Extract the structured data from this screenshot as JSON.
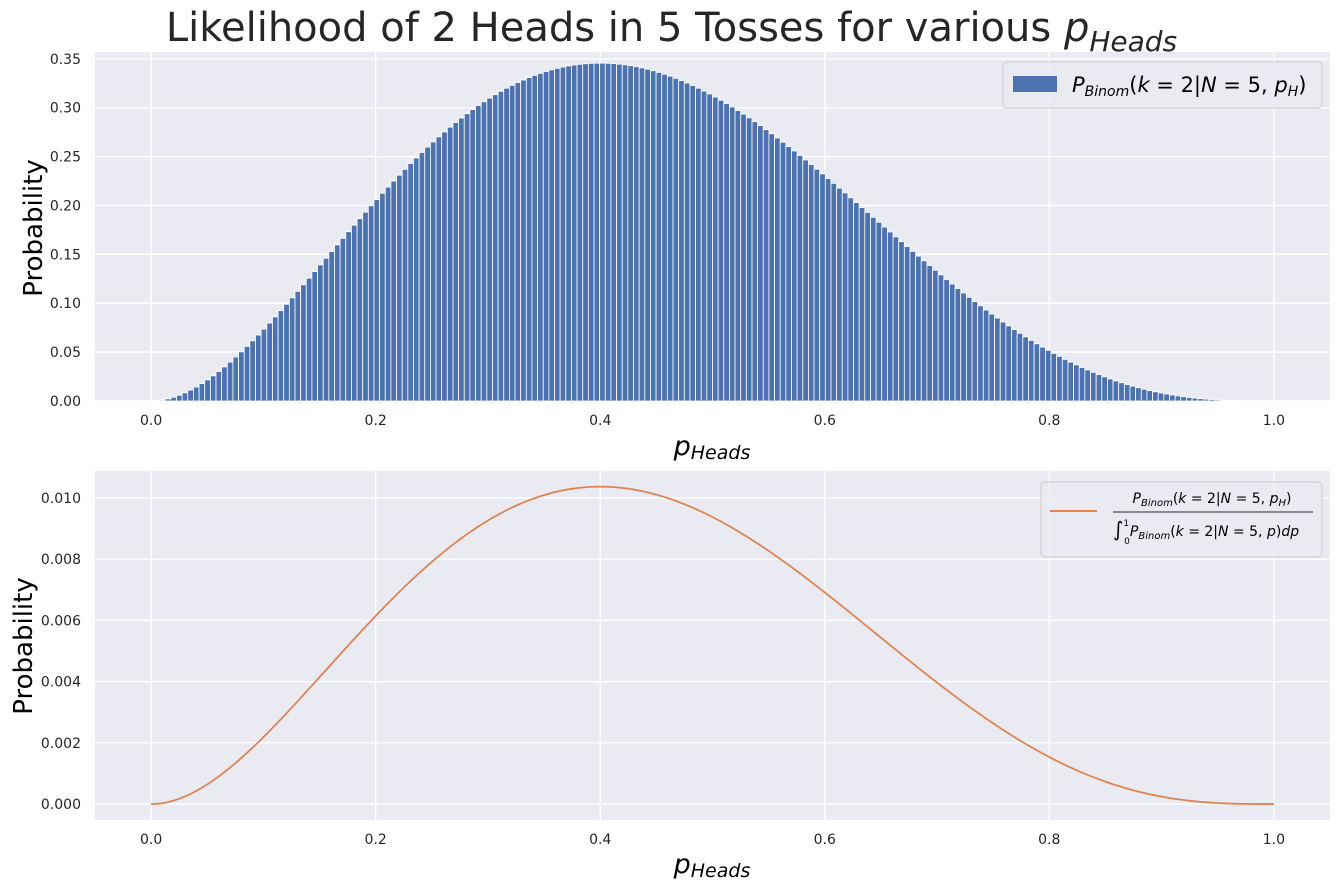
{
  "chart_data": [
    {
      "type": "bar",
      "title_text": "Likelihood of 2 Heads in 5 Tosses for various ",
      "title_math_base": "p",
      "title_math_sub": "Heads",
      "xlabel_base": "p",
      "xlabel_sub": "Heads",
      "ylabel": "Probability",
      "xlim": [
        -0.05,
        1.05
      ],
      "ylim": [
        0,
        0.357
      ],
      "xticks": [
        "0.0",
        "0.2",
        "0.4",
        "0.6",
        "0.8",
        "1.0"
      ],
      "yticks": [
        "0.00",
        "0.05",
        "0.10",
        "0.15",
        "0.20",
        "0.25",
        "0.30",
        "0.35"
      ],
      "grid": true,
      "legend_position": "top-right",
      "legend_label": "P_Binom(k = 2|N = 5, p_H)",
      "series": [
        {
          "name": "P_Binom(k = 2|N = 5, p_H)",
          "color": "#4c72b0",
          "x_start": 0.0,
          "x_end": 1.0,
          "num_bars": 200,
          "formula": "10 * p^2 * (1-p)^3"
        }
      ]
    },
    {
      "type": "line",
      "xlabel_base": "p",
      "xlabel_sub": "Heads",
      "ylabel": "Probability",
      "xlim": [
        -0.05,
        1.05
      ],
      "ylim": [
        -0.00052,
        0.01088
      ],
      "xticks": [
        "0.0",
        "0.2",
        "0.4",
        "0.6",
        "0.8",
        "1.0"
      ],
      "yticks": [
        "0.000",
        "0.002",
        "0.004",
        "0.006",
        "0.008",
        "0.010"
      ],
      "grid": true,
      "legend_position": "top-right",
      "legend_label": "normalized P_Binom(k = 2|N = 5, p_H)",
      "series": [
        {
          "name": "normalized P_Binom(k = 2|N = 5, p_H)",
          "color": "#dd8452",
          "x_start": 0.0,
          "x_end": 1.0,
          "num_points": 200,
          "formula": "10 * p^2 * (1-p)^3 / 33.33"
        }
      ]
    }
  ],
  "colors": {
    "axes_bg": "#eaeaf2",
    "grid": "#ffffff",
    "bar": "#4c72b0",
    "line": "#dd8452"
  }
}
